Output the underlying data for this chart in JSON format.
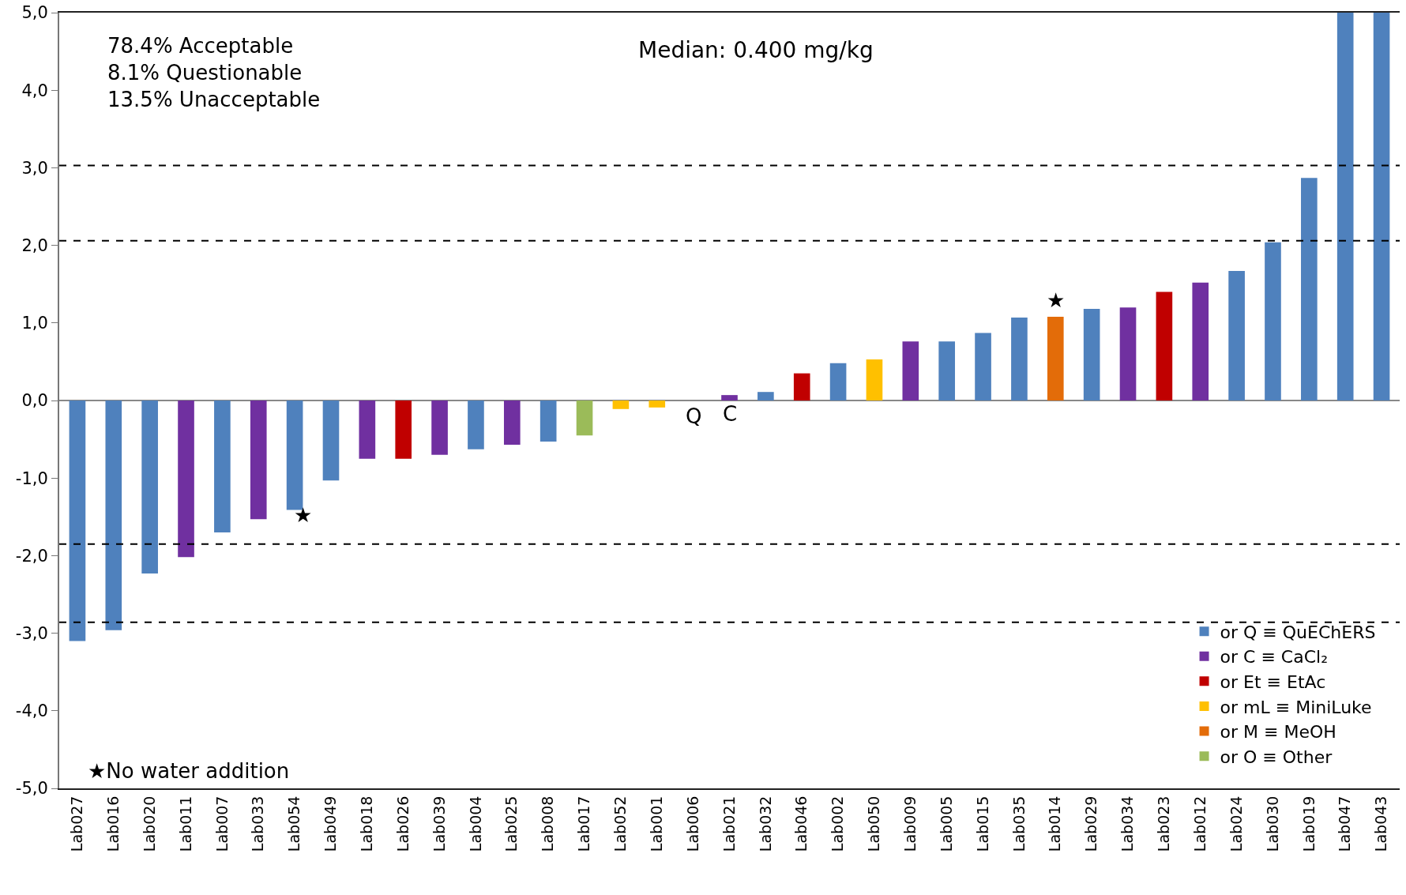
{
  "chart_data": {
    "type": "bar",
    "categories": [
      "Lab027",
      "Lab016",
      "Lab020",
      "Lab011",
      "Lab007",
      "Lab033",
      "Lab054",
      "Lab049",
      "Lab018",
      "Lab026",
      "Lab039",
      "Lab004",
      "Lab025",
      "Lab008",
      "Lab017",
      "Lab052",
      "Lab001",
      "Lab006",
      "Lab021",
      "Lab032",
      "Lab046",
      "Lab002",
      "Lab050",
      "Lab009",
      "Lab005",
      "Lab015",
      "Lab035",
      "Lab014",
      "Lab029",
      "Lab034",
      "Lab023",
      "Lab012",
      "Lab024",
      "Lab030",
      "Lab019",
      "Lab047",
      "Lab043"
    ],
    "series": [
      {
        "name": "or Q ≡ QuEChERS",
        "color": "#4f81bd",
        "values": [
          -3.1,
          -2.96,
          -2.23,
          null,
          -1.7,
          null,
          -1.41,
          -1.03,
          null,
          null,
          null,
          -0.63,
          null,
          -0.53,
          null,
          null,
          null,
          null,
          null,
          0.11,
          null,
          0.48,
          null,
          null,
          0.76,
          0.87,
          1.07,
          null,
          1.18,
          null,
          null,
          null,
          1.67,
          2.04,
          2.87,
          5.0,
          5.0
        ]
      },
      {
        "name": "or C ≡ CaCl₂",
        "color": "#7030a0",
        "values": [
          null,
          null,
          null,
          -2.02,
          null,
          -1.53,
          null,
          null,
          -0.75,
          null,
          -0.7,
          null,
          -0.57,
          null,
          null,
          null,
          null,
          null,
          0.07,
          null,
          null,
          null,
          null,
          0.76,
          null,
          null,
          null,
          null,
          null,
          1.2,
          null,
          1.52,
          null,
          null,
          null,
          null,
          null
        ]
      },
      {
        "name": "or Et ≡ EtAc",
        "color": "#c00000",
        "values": [
          null,
          null,
          null,
          null,
          null,
          null,
          null,
          null,
          null,
          -0.75,
          null,
          null,
          null,
          null,
          null,
          null,
          null,
          null,
          null,
          null,
          0.35,
          null,
          null,
          null,
          null,
          null,
          null,
          null,
          null,
          null,
          1.4,
          null,
          null,
          null,
          null,
          null,
          null
        ]
      },
      {
        "name": "or mL ≡ MiniLuke",
        "color": "#ffc000",
        "values": [
          null,
          null,
          null,
          null,
          null,
          null,
          null,
          null,
          null,
          null,
          null,
          null,
          null,
          null,
          null,
          -0.11,
          -0.09,
          null,
          null,
          null,
          null,
          null,
          0.53,
          null,
          null,
          null,
          null,
          null,
          null,
          null,
          null,
          null,
          null,
          null,
          null,
          null,
          null
        ]
      },
      {
        "name": "or M ≡ MeOH",
        "color": "#e36c09",
        "values": [
          null,
          null,
          null,
          null,
          null,
          null,
          null,
          null,
          null,
          null,
          null,
          null,
          null,
          null,
          null,
          null,
          null,
          null,
          null,
          null,
          null,
          null,
          null,
          null,
          null,
          null,
          null,
          1.08,
          null,
          null,
          null,
          null,
          null,
          null,
          null,
          null,
          null
        ]
      },
      {
        "name": "or O ≡ Other",
        "color": "#9bbb59",
        "values": [
          null,
          null,
          null,
          null,
          null,
          null,
          null,
          null,
          null,
          null,
          null,
          null,
          null,
          null,
          -0.45,
          null,
          null,
          null,
          null,
          null,
          null,
          null,
          null,
          null,
          null,
          null,
          null,
          null,
          null,
          null,
          null,
          null,
          null,
          null,
          null,
          null,
          null
        ]
      }
    ],
    "ylim": [
      -5,
      5
    ],
    "yticks": [
      {
        "value": -5,
        "label": "-5,0"
      },
      {
        "value": -4,
        "label": "-4,0"
      },
      {
        "value": -3,
        "label": "-3,0"
      },
      {
        "value": -2,
        "label": "-2,0"
      },
      {
        "value": -1,
        "label": "-1,0"
      },
      {
        "value": 0,
        "label": "0,0"
      },
      {
        "value": 1,
        "label": "1,0"
      },
      {
        "value": 2,
        "label": "2,0"
      },
      {
        "value": 3,
        "label": "3,0"
      },
      {
        "value": 4,
        "label": "4,0"
      },
      {
        "value": 5,
        "label": "5,0"
      }
    ],
    "ref_lines": [
      {
        "axis": "y",
        "value": 3.03,
        "line_style": "dashed",
        "color": "#000000"
      },
      {
        "axis": "y",
        "value": 2.06,
        "line_style": "dashed",
        "color": "#000000"
      },
      {
        "axis": "y",
        "value": -1.85,
        "line_style": "dashed",
        "color": "#000000"
      },
      {
        "axis": "y",
        "value": -2.86,
        "line_style": "dashed",
        "color": "#000000"
      }
    ],
    "annotations": [
      "78.4% Acceptable",
      "8.1% Questionable",
      "13.5% Unacceptable",
      "Median: 0.400 mg/kg",
      "★No water addition",
      "Q",
      {
        "text": "C",
        "x": "Lab021",
        "y": 0
      },
      {
        "text": "★",
        "x": "Lab054",
        "y": -1.41
      },
      {
        "text": "★",
        "x": "Lab014",
        "y": 1.08
      }
    ],
    "grid": false,
    "legend": "bottom right"
  }
}
